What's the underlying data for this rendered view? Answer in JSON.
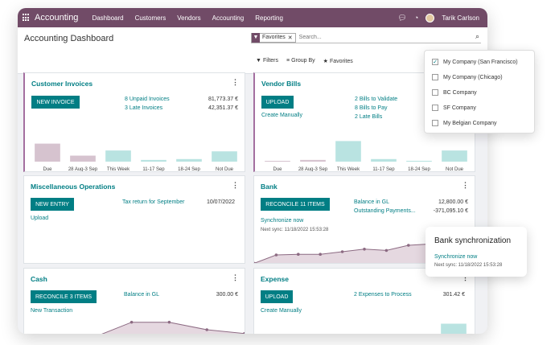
{
  "navbar": {
    "app": "Accounting",
    "menus": [
      "Dashboard",
      "Customers",
      "Vendors",
      "Accounting",
      "Reporting"
    ],
    "user": "Tarik Carlson",
    "bg_color": "#714b67"
  },
  "control": {
    "title": "Accounting Dashboard",
    "facet": "Favorites",
    "search_placeholder": "Search...",
    "filters": "Filters",
    "group_by": "Group By",
    "favorites": "Favorites"
  },
  "company_menu": {
    "items": [
      {
        "label": "My Company (San Francisco)",
        "checked": true
      },
      {
        "label": "My Company (Chicago)",
        "checked": false
      },
      {
        "label": "BC Company",
        "checked": false
      },
      {
        "label": "SF Company",
        "checked": false
      },
      {
        "label": "My Belgian Company",
        "checked": false
      }
    ]
  },
  "customer_invoices": {
    "title": "Customer Invoices",
    "button": "NEW INVOICE",
    "rows": [
      {
        "label": "8 Unpaid Invoices",
        "amount": "81,773.37 €"
      },
      {
        "label": "3 Late Invoices",
        "amount": "42,351.37 €"
      }
    ],
    "chart_data": {
      "type": "bar",
      "categories": [
        "Due",
        "28 Aug-3 Sep",
        "This Week",
        "11-17 Sep",
        "18-24 Sep",
        "Not Due"
      ],
      "values": [
        21,
        7,
        13,
        2,
        3,
        12
      ],
      "colors": [
        "#d6c3cf",
        "#d6c3cf",
        "#b9e3e1",
        "#b9e3e1",
        "#b9e3e1",
        "#b9e3e1"
      ],
      "ylim": [
        0,
        30
      ]
    }
  },
  "vendor_bills": {
    "title": "Vendor Bills",
    "button": "UPLOAD",
    "create": "Create Manually",
    "rows": [
      {
        "label": "2 Bills to Validate"
      },
      {
        "label": "8 Bills to Pay"
      },
      {
        "label": "2 Late Bills"
      }
    ],
    "chart_data": {
      "type": "bar",
      "categories": [
        "Due",
        "28 Aug-3 Sep",
        "This Week",
        "11-17 Sep",
        "18-24 Sep",
        "Not Due"
      ],
      "values": [
        0,
        2,
        24,
        3,
        1,
        13
      ],
      "colors": [
        "#d6c3cf",
        "#d6c3cf",
        "#b9e3e1",
        "#b9e3e1",
        "#b9e3e1",
        "#b9e3e1"
      ],
      "ylim": [
        0,
        30
      ]
    }
  },
  "misc_operations": {
    "title": "Miscellaneous Operations",
    "button": "NEW ENTRY",
    "upload": "Upload",
    "row_label": "Tax return for September",
    "row_date": "10/07/2022"
  },
  "bank": {
    "title": "Bank",
    "button": "RECONCILE 11 ITEMS",
    "rows": [
      {
        "label": "Balance in GL",
        "amount": "12,800.00 €"
      },
      {
        "label": "Outstanding Payments...",
        "amount": "-371,095.10 €"
      }
    ],
    "sync": "Synchronize now",
    "next_sync": "Next sync: 11/18/2022 15:53:28",
    "chart_data": {
      "type": "area",
      "x": [
        1,
        2,
        3,
        4,
        5,
        6,
        7,
        8,
        9,
        10,
        11
      ],
      "values": [
        2,
        15,
        16,
        16,
        20,
        24,
        22,
        30,
        32,
        32,
        31
      ],
      "ylim": [
        0,
        45
      ]
    }
  },
  "bank_popup": {
    "title": "Bank synchronization",
    "sync": "Synchronize now",
    "next_sync": "Next sync: 11/18/2022 15:53:28"
  },
  "cash": {
    "title": "Cash",
    "button": "RECONCILE 3 ITEMS",
    "new_transaction": "New Transaction",
    "row_label": "Balance in GL",
    "row_amount": "300.00 €",
    "chart_data": {
      "type": "area",
      "x": [
        1,
        2,
        3,
        4,
        5,
        6
      ],
      "values": [
        1,
        2,
        10,
        10,
        6,
        4
      ],
      "ylim": [
        0,
        12
      ]
    }
  },
  "expense": {
    "title": "Expense",
    "button": "UPLOAD",
    "create": "Create Manually",
    "row_label": "2 Expenses to Process",
    "row_amount": "301.42 €",
    "chart_data": {
      "type": "bar",
      "values": [
        2,
        3,
        3,
        3,
        3,
        9
      ],
      "colors": [
        "#d6c3cf",
        "#d6c3cf",
        "#b9e3e1",
        "#b9e3e1",
        "#b9e3e1",
        "#b9e3e1"
      ],
      "ylim": [
        0,
        12
      ]
    }
  }
}
